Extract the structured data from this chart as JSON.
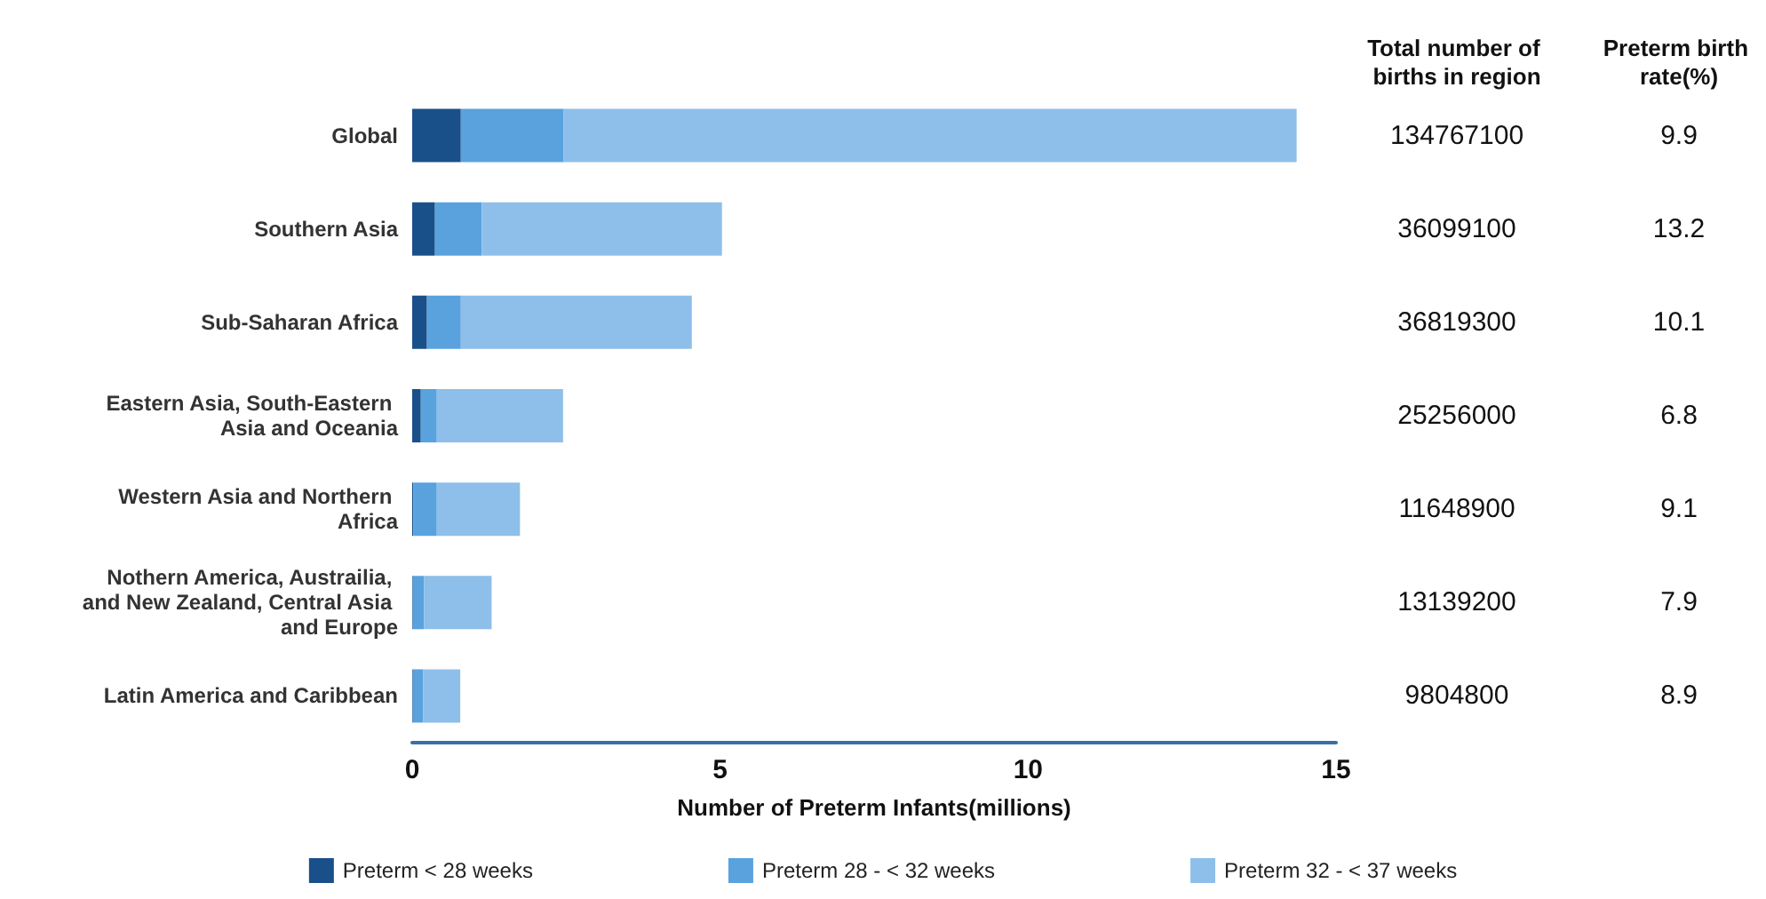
{
  "chart_data": {
    "type": "bar",
    "orientation": "horizontal",
    "stacked": true,
    "categories": [
      "Global",
      "Southern Asia",
      "Sub-Saharan Africa",
      "Eastern Asia, South-Eastern Asia and Oceania",
      "Western Asia and Northern Africa",
      "Nothern America, Austrailia, and New Zealand, Central Asia and Europe",
      "Latin America and Caribbean"
    ],
    "series": [
      {
        "name": "Preterm < 28 weeks",
        "color": "#1a5089",
        "values": [
          0.79,
          0.37,
          0.24,
          0.14,
          0.02,
          0.01,
          0.01
        ]
      },
      {
        "name": "Preterm 28 - < 32 weeks",
        "color": "#59a2de",
        "values": [
          1.67,
          0.76,
          0.55,
          0.26,
          0.38,
          0.18,
          0.17
        ]
      },
      {
        "name": "Preterm 32 - < 37 weeks",
        "color": "#8ebfea",
        "values": [
          11.9,
          3.9,
          3.75,
          2.05,
          1.35,
          1.1,
          0.6
        ]
      }
    ],
    "xlim": [
      0,
      15
    ],
    "xticks": [
      0,
      5,
      10,
      15
    ],
    "xlabel": "Number of Preterm Infants(millions)",
    "legend": "bottom",
    "grid": false,
    "annotations": [
      "Total number of births in region",
      "Preterm birth rate(%)",
      "134767100",
      "9.9",
      "36099100",
      "13.2",
      "36819300",
      "10.1",
      "25256000",
      "6.8",
      "11648900",
      "9.1",
      "13139200",
      "7.9",
      "9804800",
      "8.9"
    ]
  }
}
